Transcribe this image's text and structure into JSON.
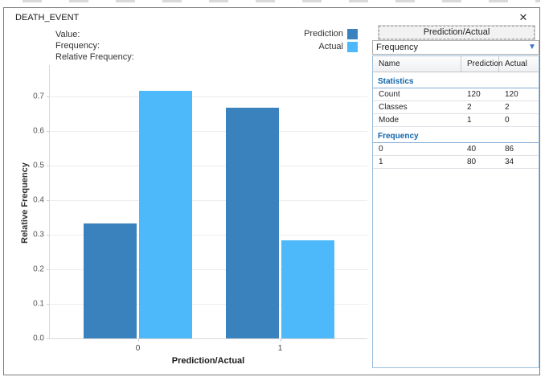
{
  "window": {
    "title": "DEATH_EVENT",
    "close_glyph": "✕"
  },
  "hover_labels": {
    "value": "Value:",
    "frequency": "Frequency:",
    "relative_frequency": "Relative Frequency:"
  },
  "legend": [
    {
      "label": "Prediction",
      "color": "#3a82be"
    },
    {
      "label": "Actual",
      "color": "#4db8fa"
    }
  ],
  "chart_data": {
    "type": "bar",
    "title": "",
    "xlabel": "Prediction/Actual",
    "ylabel": "Relative Frequency",
    "categories": [
      "0",
      "1"
    ],
    "series": [
      {
        "name": "Prediction",
        "color": "#3a82be",
        "values": [
          0.3333,
          0.6667
        ],
        "counts": [
          40,
          80
        ]
      },
      {
        "name": "Actual",
        "color": "#4db8fa",
        "values": [
          0.7167,
          0.2833
        ],
        "counts": [
          86,
          34
        ]
      }
    ],
    "ylim": [
      0,
      0.79
    ],
    "ytick_labels": [
      "0.0",
      "0.1",
      "0.2",
      "0.3",
      "0.4",
      "0.5",
      "0.6",
      "0.7"
    ],
    "ytick_values": [
      0,
      0.1,
      0.2,
      0.3,
      0.4,
      0.5,
      0.6,
      0.7
    ],
    "grid": true,
    "legend_position": "top-right"
  },
  "panel": {
    "button_label": "Prediction/Actual",
    "dropdown": {
      "value": "Frequency",
      "chevron_glyph": "▼"
    },
    "table": {
      "headers": [
        "Name",
        "Prediction",
        "Actual"
      ],
      "sections": [
        {
          "title": "Statistics",
          "rows": [
            [
              "Count",
              "120",
              "120"
            ],
            [
              "Classes",
              "2",
              "2"
            ],
            [
              "Mode",
              "1",
              "0"
            ]
          ]
        },
        {
          "title": "Frequency",
          "rows": [
            [
              "0",
              "40",
              "86"
            ],
            [
              "1",
              "80",
              "34"
            ]
          ]
        }
      ]
    }
  }
}
